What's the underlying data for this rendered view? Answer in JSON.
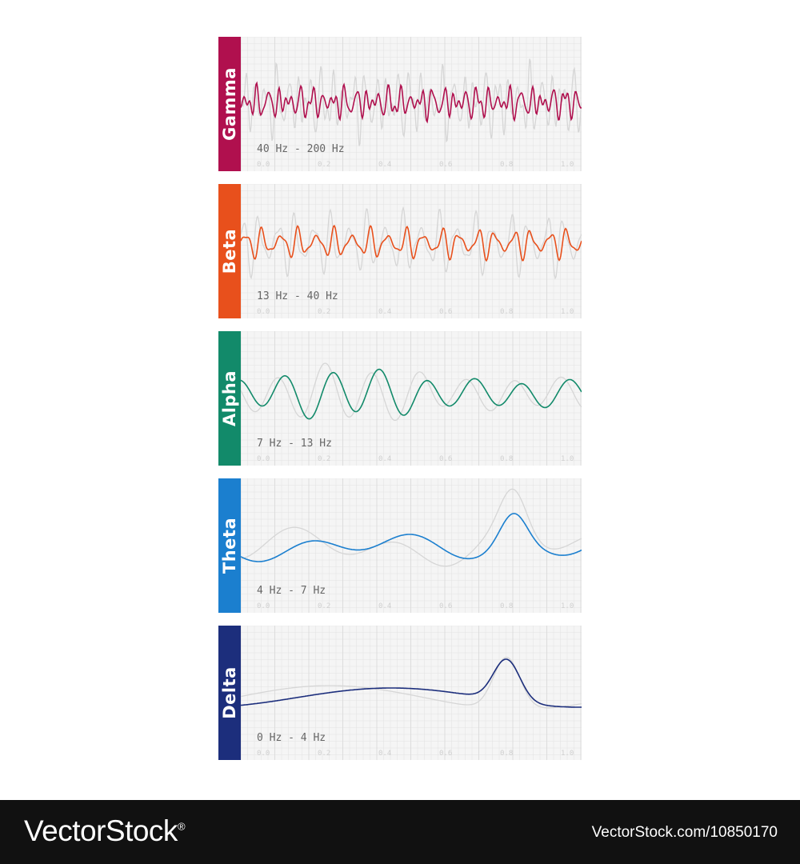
{
  "bands": [
    {
      "name": "Gamma",
      "range": "40 Hz - 200 Hz",
      "color": "#b0104e",
      "wave": "fast-noisy"
    },
    {
      "name": "Beta",
      "range": "13 Hz - 40 Hz",
      "color": "#e8501c",
      "wave": "fast"
    },
    {
      "name": "Alpha",
      "range": "7 Hz - 13 Hz",
      "color": "#128a6a",
      "wave": "medium"
    },
    {
      "name": "Theta",
      "range": "4 Hz - 7 Hz",
      "color": "#1b7fcf",
      "wave": "slow"
    },
    {
      "name": "Delta",
      "range": "0 Hz - 4 Hz",
      "color": "#1c2e7c",
      "wave": "very-slow"
    }
  ],
  "axis_ticks": [
    "0.0",
    "0.2",
    "0.4",
    "0.6",
    "0.8",
    "1.0"
  ],
  "footer": {
    "brand": "VectorStock",
    "reg_mark": "®",
    "stock_id": "VectorStock.com/10850170"
  }
}
